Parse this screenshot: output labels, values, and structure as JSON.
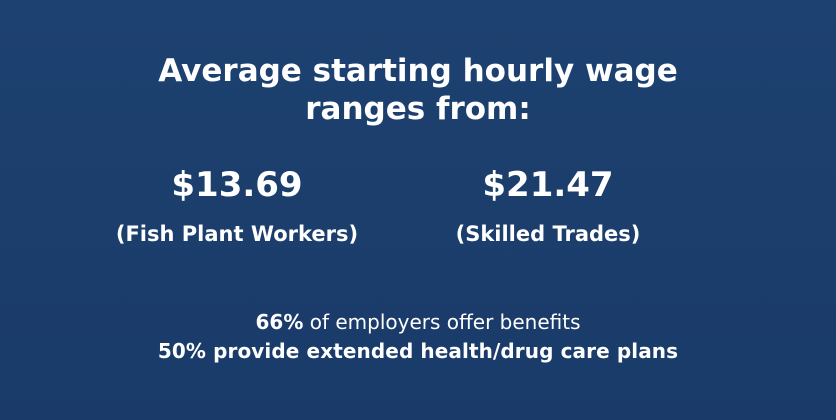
{
  "title_lines": [
    "Average starting hourly wage",
    "ranges from:"
  ],
  "stats": [
    {
      "value": "$13.69",
      "label": "(Fish Plant Workers)"
    },
    {
      "value": "$21.47",
      "label": "(Skilled Trades)"
    }
  ],
  "notes": [
    {
      "highlight": "66%",
      "text": "of employers offer benefits"
    },
    {
      "text": "50% provide extended health/drug care plans"
    }
  ]
}
